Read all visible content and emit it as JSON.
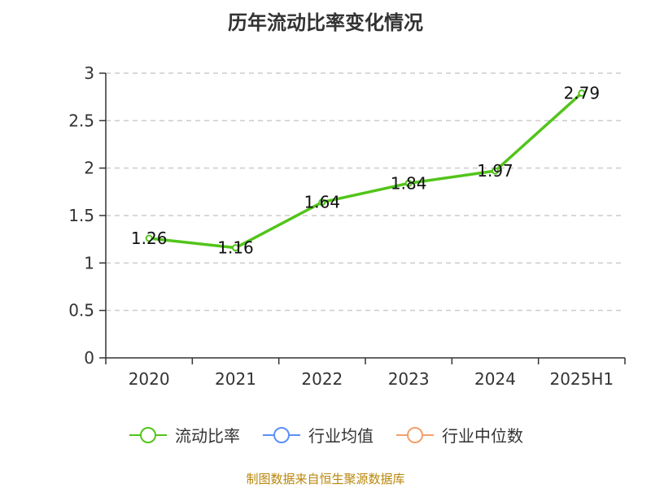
{
  "chart_data": {
    "type": "line",
    "title": "历年流动比率变化情况",
    "categories": [
      "2020",
      "2021",
      "2022",
      "2023",
      "2024",
      "2025H1"
    ],
    "series": [
      {
        "name": "流动比率",
        "values": [
          1.26,
          1.16,
          1.64,
          1.84,
          1.97,
          2.79
        ],
        "color": "#52c41a"
      }
    ],
    "legend": [
      {
        "name": "流动比率",
        "color": "#52c41a"
      },
      {
        "name": "行业均值",
        "color": "#5b8ff9"
      },
      {
        "name": "行业中位数",
        "color": "#f4a06a"
      }
    ],
    "ylim": [
      0,
      3
    ],
    "yticks": [
      "0",
      "0.5",
      "1",
      "1.5",
      "2",
      "2.5",
      "3"
    ],
    "grid": true,
    "legend_position": "bottom"
  },
  "source": "制图数据来自恒生聚源数据库"
}
